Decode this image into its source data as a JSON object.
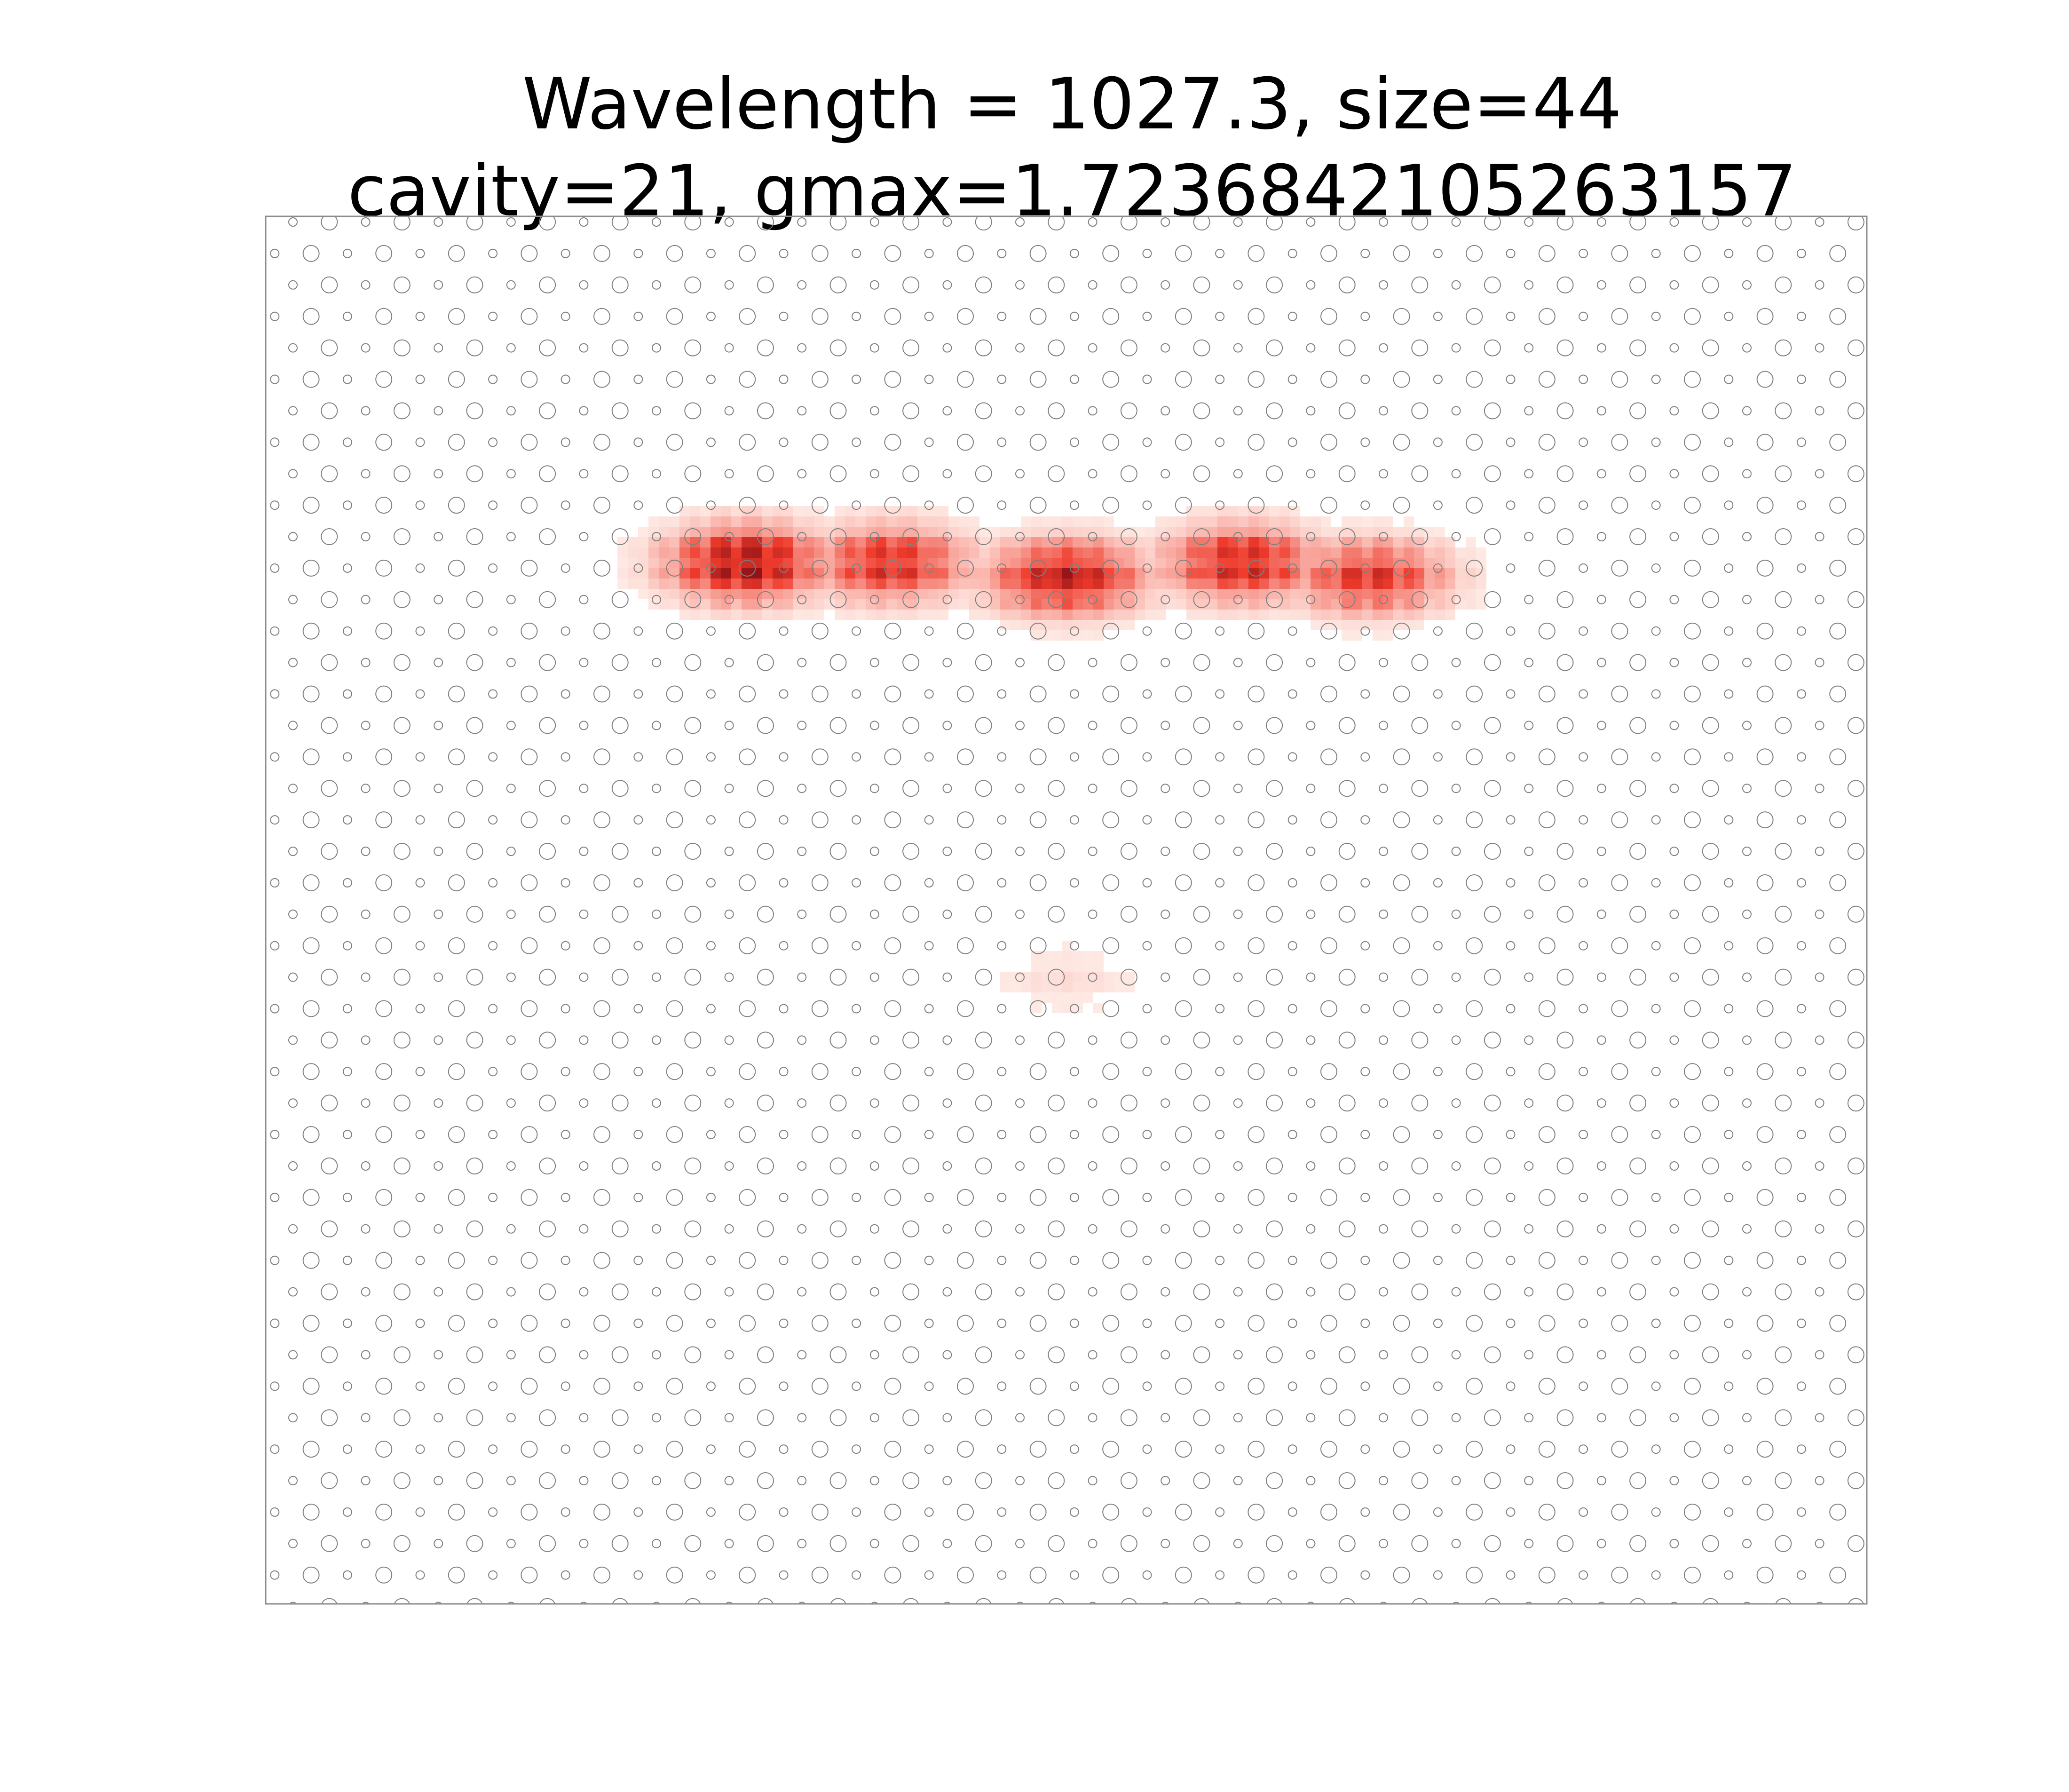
{
  "chart_data": {
    "type": "heatmap",
    "title_lines": [
      "Wavelength = 1027.3, size=44",
      "cavity=21, gmax=1.7236842105263157"
    ],
    "xlabel": "",
    "ylabel": "",
    "axes_visible": false,
    "colormap": "Reds",
    "colors": {
      "background": "#ffffff",
      "hole_outline": "#7f7f7f",
      "frame": "#8c8c8c",
      "field_low": "#fff5f0",
      "field_mid": "#ef3b2c",
      "field_high": "#67000d"
    },
    "lattice": {
      "description": "quasi-periodic lattice of circular holes, alternating large and small circles",
      "columns": 44,
      "rows": 44
    },
    "field_intensity_peaks": [
      {
        "x": 0.3,
        "y": 0.75,
        "value": 1.0
      },
      {
        "x": 0.39,
        "y": 0.75,
        "value": 0.75
      },
      {
        "x": 0.5,
        "y": 0.74,
        "value": 0.85
      },
      {
        "x": 0.61,
        "y": 0.75,
        "value": 0.8
      },
      {
        "x": 0.69,
        "y": 0.74,
        "value": 0.7
      },
      {
        "x": 0.5,
        "y": 0.45,
        "value": 0.08
      }
    ]
  }
}
